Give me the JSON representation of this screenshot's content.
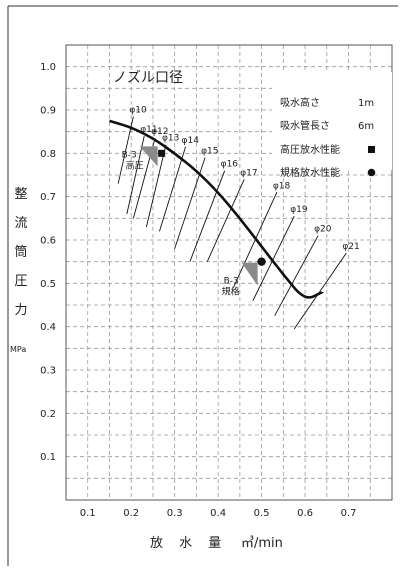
{
  "chart_data": {
    "type": "line",
    "title": "ノズル口径",
    "xlabel": "放 水 量",
    "xunit": "㎥/min",
    "ylabel": "整流筒圧力",
    "yunit": "MPa",
    "xlim": [
      0.05,
      0.8
    ],
    "ylim": [
      0.0,
      1.05
    ],
    "x_ticks": [
      "0.1",
      "0.2",
      "0.3",
      "0.4",
      "0.5",
      "0.6",
      "0.7"
    ],
    "y_ticks": [
      "0.1",
      "0.2",
      "0.3",
      "0.4",
      "0.5",
      "0.6",
      "0.7",
      "0.8",
      "0.9",
      "1.0"
    ],
    "grid": true,
    "legend": {
      "placement": "top-right",
      "conditions": [
        {
          "label": "吸水高さ",
          "value": "1m"
        },
        {
          "label": "吸水管長さ",
          "value": "6m"
        }
      ],
      "markers": [
        {
          "label": "高圧放水性能",
          "marker": "square"
        },
        {
          "label": "規格放水性能",
          "marker": "circle"
        }
      ]
    },
    "curve": {
      "x": [
        0.15,
        0.2,
        0.25,
        0.3,
        0.35,
        0.4,
        0.45,
        0.5,
        0.55,
        0.6,
        0.64
      ],
      "y": [
        0.875,
        0.86,
        0.835,
        0.8,
        0.76,
        0.71,
        0.65,
        0.585,
        0.52,
        0.46,
        0.48
      ]
    },
    "nozzle_lines": [
      {
        "label": "φ10",
        "x1": 0.17,
        "y1": 0.73,
        "x2": 0.205,
        "y2": 0.885
      },
      {
        "label": "φ11",
        "x1": 0.19,
        "y1": 0.66,
        "x2": 0.23,
        "y2": 0.84
      },
      {
        "label": "φ12",
        "x1": 0.205,
        "y1": 0.65,
        "x2": 0.255,
        "y2": 0.835
      },
      {
        "label": "φ13",
        "x1": 0.235,
        "y1": 0.63,
        "x2": 0.28,
        "y2": 0.82
      },
      {
        "label": "φ14",
        "x1": 0.265,
        "y1": 0.62,
        "x2": 0.325,
        "y2": 0.815
      },
      {
        "label": "φ15",
        "x1": 0.3,
        "y1": 0.58,
        "x2": 0.37,
        "y2": 0.79
      },
      {
        "label": "φ16",
        "x1": 0.335,
        "y1": 0.55,
        "x2": 0.415,
        "y2": 0.76
      },
      {
        "label": "φ17",
        "x1": 0.375,
        "y1": 0.55,
        "x2": 0.46,
        "y2": 0.74
      },
      {
        "label": "φ18",
        "x1": 0.435,
        "y1": 0.49,
        "x2": 0.535,
        "y2": 0.71
      },
      {
        "label": "φ19",
        "x1": 0.48,
        "y1": 0.46,
        "x2": 0.575,
        "y2": 0.655
      },
      {
        "label": "φ20",
        "x1": 0.53,
        "y1": 0.425,
        "x2": 0.63,
        "y2": 0.61
      },
      {
        "label": "φ21",
        "x1": 0.575,
        "y1": 0.395,
        "x2": 0.695,
        "y2": 0.57
      }
    ],
    "points": [
      {
        "label": "B-3 高圧",
        "marker": "square",
        "x": 0.27,
        "y": 0.8
      },
      {
        "label": "B-3 規格",
        "marker": "circle",
        "x": 0.5,
        "y": 0.55
      }
    ]
  }
}
